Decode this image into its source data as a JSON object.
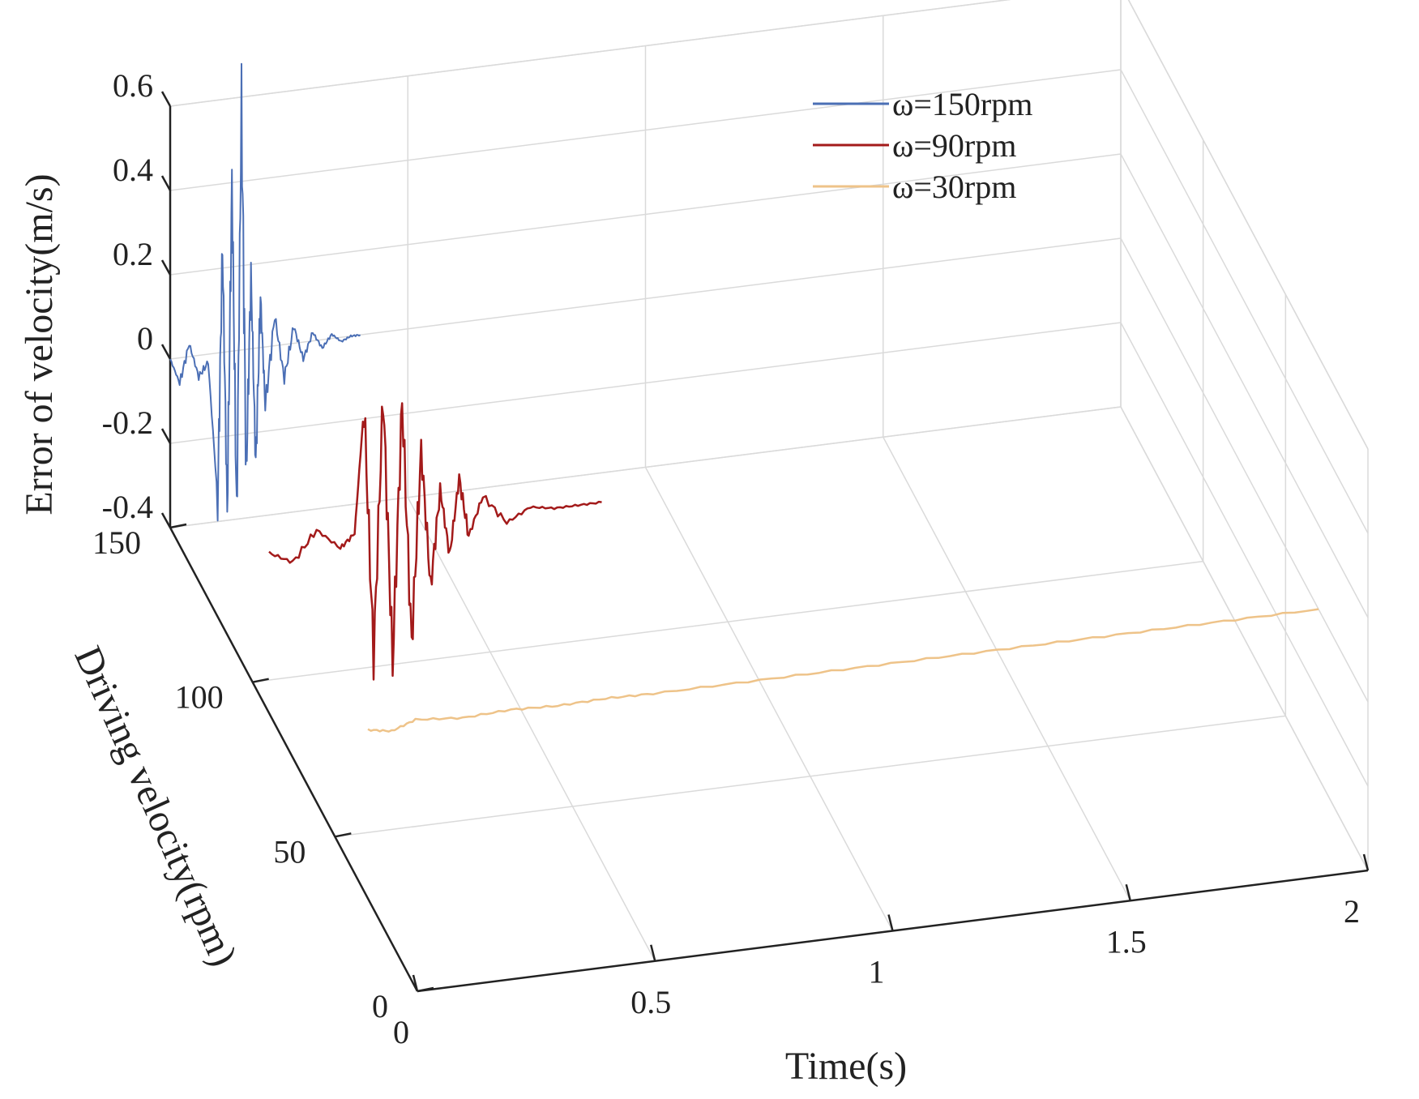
{
  "chart_data": {
    "type": "line",
    "projection": "3d",
    "title": "",
    "xlabel": "Time(s)",
    "ylabel": "Driving velocity(rpm)",
    "zlabel": "Error of velocity(m/s)",
    "xlim": [
      0,
      2
    ],
    "ylim": [
      0,
      150
    ],
    "zlim": [
      -0.4,
      0.6
    ],
    "x_ticks": [
      "0",
      "0.5",
      "1",
      "1.5",
      "2"
    ],
    "y_ticks": [
      "0",
      "50",
      "100",
      "150"
    ],
    "z_ticks": [
      "-0.4",
      "-0.2",
      "0",
      "0.2",
      "0.4",
      "0.6"
    ],
    "grid": true,
    "legend_position": "top-right",
    "series": [
      {
        "name": "ω=150rpm",
        "driving_velocity": 150,
        "color": "#4b6fb5",
        "time_range": [
          0,
          0.4
        ],
        "x": [
          0,
          0.02,
          0.04,
          0.06,
          0.08,
          0.1,
          0.11,
          0.12,
          0.13,
          0.14,
          0.15,
          0.16,
          0.17,
          0.18,
          0.19,
          0.2,
          0.22,
          0.24,
          0.26,
          0.28,
          0.3,
          0.32,
          0.34,
          0.36,
          0.38,
          0.4
        ],
        "y": [
          0.0,
          -0.06,
          0.03,
          -0.05,
          -0.02,
          -0.35,
          0.25,
          -0.38,
          0.4,
          -0.4,
          0.58,
          -0.3,
          0.18,
          -0.28,
          0.12,
          -0.14,
          0.07,
          -0.08,
          0.04,
          -0.04,
          0.02,
          -0.02,
          0.01,
          -0.01,
          0.0,
          0.0
        ]
      },
      {
        "name": "ω=90rpm",
        "driving_velocity": 90,
        "color": "#a31a1a",
        "time_range": [
          0,
          0.7
        ],
        "x": [
          0,
          0.05,
          0.1,
          0.15,
          0.18,
          0.2,
          0.22,
          0.24,
          0.26,
          0.28,
          0.3,
          0.32,
          0.34,
          0.36,
          0.38,
          0.4,
          0.42,
          0.45,
          0.5,
          0.55,
          0.6,
          0.65,
          0.7
        ],
        "y": [
          -0.02,
          -0.05,
          0.02,
          -0.03,
          0.0,
          0.3,
          -0.3,
          0.32,
          -0.32,
          0.3,
          -0.28,
          0.18,
          -0.15,
          0.08,
          -0.08,
          0.1,
          -0.04,
          0.05,
          -0.02,
          0.01,
          0.0,
          0.0,
          0.0
        ]
      },
      {
        "name": "ω=30rpm",
        "driving_velocity": 30,
        "color": "#eec389",
        "time_range": [
          0,
          2
        ],
        "x": [
          0,
          0.05,
          0.1,
          0.2,
          0.3,
          0.4,
          0.5,
          0.6,
          0.8,
          1.0,
          1.2,
          1.4,
          1.6,
          1.8,
          2.0
        ],
        "y": [
          0.0,
          -0.01,
          0.01,
          0.0,
          0.005,
          0.0,
          0.003,
          0.0,
          0.0,
          0.0,
          0.0,
          0.0,
          0.0,
          0.0,
          0.0
        ]
      }
    ]
  }
}
